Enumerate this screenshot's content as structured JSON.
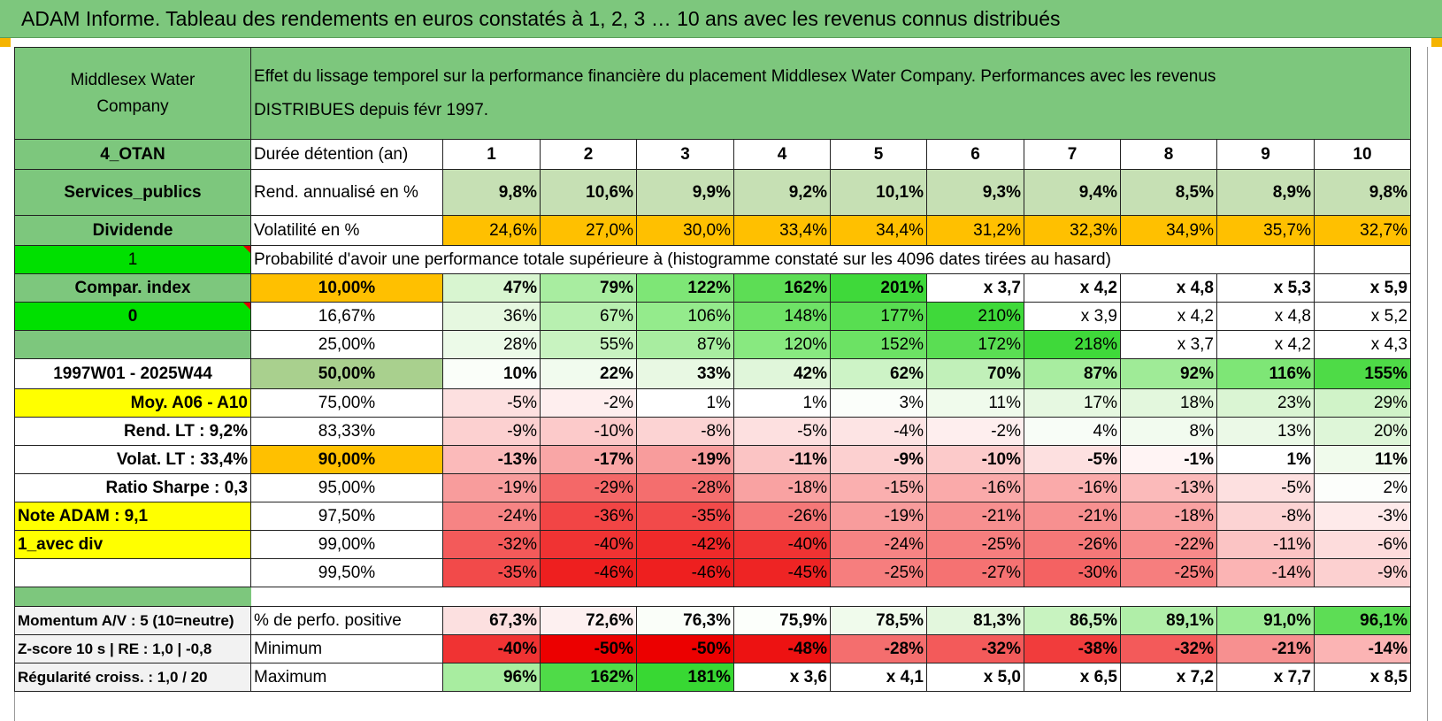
{
  "header": {
    "title": "ADAM Informe. Tableau des rendements en euros constatés à 1, 2, 3 … 10 ans avec les revenus connus distribués"
  },
  "company": {
    "name_line1": "Middlesex Water",
    "name_line2": "Company",
    "description_line1": "Effet du lissage temporel sur la performance financière du placement Middlesex Water Company. Performances avec les revenus",
    "description_line2": "DISTRIBUES depuis févr 1997."
  },
  "side": {
    "group": "4_OTAN",
    "sector": "Services_publics",
    "mode": "Dividende",
    "flag1": "1",
    "compar": "Compar. index",
    "flag0": "0",
    "blank": "",
    "period": "1997W01 - 2025W44",
    "moy": "Moy. A06 - A10",
    "rend_lt": "Rend. LT :   9,2%",
    "volat_lt": "Volat. LT :   33,4%",
    "sharpe": "Ratio Sharpe :    0,3",
    "note": "Note ADAM : 9,1",
    "avec_div": "1_avec div"
  },
  "labels": {
    "duree": "Durée détention (an)",
    "rend": "Rend. annualisé en %",
    "vol": "Volatilité en %",
    "prob_title": "Probabilité d'avoir une performance totale supérieure à (histogramme constaté sur les 4096 dates tirées au hasard)"
  },
  "years": [
    "1",
    "2",
    "3",
    "4",
    "5",
    "6",
    "7",
    "8",
    "9",
    "10"
  ],
  "rend": [
    "9,8%",
    "10,6%",
    "9,9%",
    "9,2%",
    "10,1%",
    "9,3%",
    "9,4%",
    "8,5%",
    "8,9%",
    "9,8%"
  ],
  "vol": [
    "24,6%",
    "27,0%",
    "30,0%",
    "33,4%",
    "34,4%",
    "31,2%",
    "32,3%",
    "34,9%",
    "35,7%",
    "32,7%"
  ],
  "prob_rows": [
    {
      "pct": "10,00%",
      "vals": [
        "47%",
        "79%",
        "122%",
        "162%",
        "201%",
        "x 3,7",
        "x 4,2",
        "x 4,8",
        "x 5,3",
        "x 5,9"
      ],
      "colors": [
        "#d8f5d0",
        "#a8eda0",
        "#7ee676",
        "#5ddd55",
        "#3fd93a",
        "#ffffff",
        "#ffffff",
        "#ffffff",
        "#ffffff",
        "#ffffff"
      ]
    },
    {
      "pct": "16,67%",
      "vals": [
        "36%",
        "67%",
        "106%",
        "148%",
        "177%",
        "210%",
        "x 3,9",
        "x 4,2",
        "x 4,8",
        "x 5,2"
      ],
      "colors": [
        "#e6f8e0",
        "#b8f0b0",
        "#94eb8c",
        "#6ee266",
        "#58de51",
        "#3fd93a",
        "#ffffff",
        "#ffffff",
        "#ffffff",
        "#ffffff"
      ]
    },
    {
      "pct": "25,00%",
      "vals": [
        "28%",
        "55%",
        "87%",
        "120%",
        "152%",
        "172%",
        "218%",
        "x 3,7",
        "x 4,2",
        "x 4,3"
      ],
      "colors": [
        "#ecfae8",
        "#c8f3c0",
        "#a8eda0",
        "#88e980",
        "#6ce264",
        "#5ade53",
        "#3fd93a",
        "#ffffff",
        "#ffffff",
        "#ffffff"
      ]
    },
    {
      "pct": "50,00%",
      "vals": [
        "10%",
        "22%",
        "33%",
        "42%",
        "62%",
        "70%",
        "87%",
        "92%",
        "116%",
        "155%"
      ],
      "colors": [
        "#fafef9",
        "#f1fbee",
        "#e8f8e3",
        "#e0f6da",
        "#cdf3c6",
        "#c1f0b9",
        "#a8eda0",
        "#9feb97",
        "#7ee676",
        "#4edb47"
      ]
    },
    {
      "pct": "75,00%",
      "vals": [
        "-5%",
        "-2%",
        "1%",
        "1%",
        "3%",
        "11%",
        "17%",
        "18%",
        "23%",
        "29%"
      ],
      "colors": [
        "#fde0e0",
        "#feeeee",
        "#ffffff",
        "#ffffff",
        "#fbfefa",
        "#f0fbec",
        "#e6f8e1",
        "#e3f7dd",
        "#daf5d3",
        "#d0f3c8"
      ]
    },
    {
      "pct": "83,33%",
      "vals": [
        "-9%",
        "-10%",
        "-8%",
        "-5%",
        "-4%",
        "-2%",
        "4%",
        "8%",
        "13%",
        "20%"
      ],
      "colors": [
        "#fcd0d0",
        "#fccaca",
        "#fcd3d3",
        "#fde0e0",
        "#fde4e4",
        "#feeeee",
        "#f8fdf7",
        "#f2fbef",
        "#ebf9e7",
        "#def6d8"
      ]
    },
    {
      "pct": "90,00%",
      "vals": [
        "-13%",
        "-17%",
        "-19%",
        "-11%",
        "-9%",
        "-10%",
        "-5%",
        "-1%",
        "1%",
        "11%"
      ],
      "colors": [
        "#fbbaba",
        "#f9a6a6",
        "#f89c9c",
        "#fbc4c4",
        "#fcd0d0",
        "#fccaca",
        "#fde0e0",
        "#fff4f4",
        "#ffffff",
        "#f0fbec"
      ]
    },
    {
      "pct": "95,00%",
      "vals": [
        "-19%",
        "-29%",
        "-28%",
        "-18%",
        "-15%",
        "-16%",
        "-16%",
        "-13%",
        "-5%",
        "2%"
      ],
      "colors": [
        "#f89c9c",
        "#f46868",
        "#f46e6e",
        "#f9a2a2",
        "#faafaf",
        "#faaaaa",
        "#faaaaa",
        "#fbbaba",
        "#fde0e0",
        "#fcfefb"
      ]
    },
    {
      "pct": "97,50%",
      "vals": [
        "-24%",
        "-36%",
        "-35%",
        "-26%",
        "-19%",
        "-21%",
        "-21%",
        "-18%",
        "-8%",
        "-3%"
      ],
      "colors": [
        "#f68484",
        "#f24545",
        "#f24a4a",
        "#f57878",
        "#f89c9c",
        "#f79090",
        "#f79090",
        "#f9a2a2",
        "#fcd3d3",
        "#feeaea"
      ]
    },
    {
      "pct": "99,00%",
      "vals": [
        "-32%",
        "-40%",
        "-42%",
        "-40%",
        "-24%",
        "-25%",
        "-26%",
        "-22%",
        "-11%",
        "-6%"
      ],
      "colors": [
        "#f35a5a",
        "#f03333",
        "#ef2a2a",
        "#f03333",
        "#f68484",
        "#f67e7e",
        "#f57878",
        "#f78a8a",
        "#fbc4c4",
        "#fddcdc"
      ]
    },
    {
      "pct": "99,50%",
      "vals": [
        "-35%",
        "-46%",
        "-46%",
        "-45%",
        "-25%",
        "-27%",
        "-30%",
        "-25%",
        "-14%",
        "-9%"
      ],
      "colors": [
        "#f24a4a",
        "#ee1f1f",
        "#ee1f1f",
        "#ee2424",
        "#f67e7e",
        "#f57272",
        "#f46262",
        "#f67e7e",
        "#fbb4b4",
        "#fcd0d0"
      ]
    }
  ],
  "stats": {
    "momentum": "Momentum A/V : 5 (10=neutre)",
    "zscore": "Z-score 10 s | RE : 1,0 | -0,8",
    "regul": "Régularité croiss. : 1,0 / 20",
    "pos_label": "% de perfo. positive",
    "min_label": "Minimum",
    "max_label": "Maximum",
    "pos": [
      "67,3%",
      "72,6%",
      "76,3%",
      "75,9%",
      "78,5%",
      "81,3%",
      "86,5%",
      "89,1%",
      "91,0%",
      "96,1%"
    ],
    "pos_colors": [
      "#fce0e0",
      "#fdf0f0",
      "#fafef9",
      "#fcfffb",
      "#f0fbec",
      "#e3f7dd",
      "#c8f3c0",
      "#b0eea8",
      "#9ceb94",
      "#5ddd55"
    ],
    "min": [
      "-40%",
      "-50%",
      "-50%",
      "-48%",
      "-28%",
      "-32%",
      "-38%",
      "-32%",
      "-21%",
      "-14%"
    ],
    "min_colors": [
      "#f03333",
      "#ec0000",
      "#ec0000",
      "#ed1212",
      "#f46e6e",
      "#f35a5a",
      "#f13c3c",
      "#f35a5a",
      "#f79090",
      "#fbb4b4"
    ],
    "max": [
      "96%",
      "162%",
      "181%",
      "x 3,6",
      "x 4,1",
      "x 5,0",
      "x 6,5",
      "x 7,2",
      "x 7,7",
      "x 8,5"
    ],
    "max_colors": [
      "#a8eda0",
      "#4fdb48",
      "#38d833",
      "#ffffff",
      "#ffffff",
      "#ffffff",
      "#ffffff",
      "#ffffff",
      "#ffffff",
      "#ffffff"
    ]
  }
}
